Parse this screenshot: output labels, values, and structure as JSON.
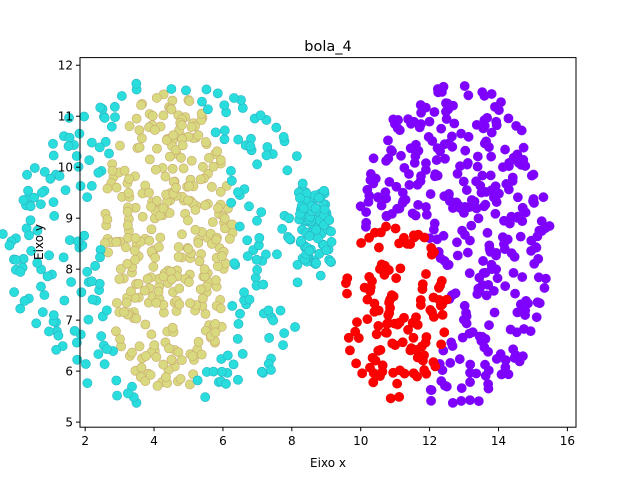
{
  "chart_data": {
    "type": "scatter",
    "title": "bola_4",
    "xlabel": "Eixo x",
    "ylabel": "Eixo y",
    "xlim": [
      1.85,
      16.25
    ],
    "ylim": [
      4.9,
      12.15
    ],
    "xticks": [
      2,
      4,
      6,
      8,
      10,
      12,
      14,
      16
    ],
    "yticks": [
      5,
      6,
      7,
      8,
      9,
      10,
      11,
      12
    ],
    "grid": false,
    "legend": "none",
    "series": [
      {
        "color": "#d9d97f",
        "edge": "#c9aa72",
        "region": {
          "shape": "ellipse",
          "cx": 4.4,
          "cy": 8.5,
          "rx": 1.9,
          "ry": 3.0
        },
        "count": 330,
        "seed": 11
      },
      {
        "color": "#2adddd",
        "edge": "#2ab4c4",
        "region": {
          "shape": "crescent",
          "cx": 4.4,
          "cy": 8.5,
          "rx": 4.8,
          "ry": 3.2,
          "cut_rx": 1.9,
          "cut_ry": 3.0,
          "cluster_cx": 9.0,
          "cluster_cy": 8.9
        },
        "count": 330,
        "seed": 23
      },
      {
        "color": "#8000ff",
        "edge": "#7a10f0",
        "region": {
          "shape": "ellipse",
          "cx": 12.7,
          "cy": 8.5,
          "rx": 2.8,
          "ry": 3.2,
          "cut": {
            "cx": 11.0,
            "cy": 7.2,
            "rx": 1.55,
            "ry": 1.75
          }
        },
        "count": 330,
        "seed": 37
      },
      {
        "color": "#ff0000",
        "edge": "#e80000",
        "region": {
          "shape": "ellipse",
          "cx": 11.0,
          "cy": 7.2,
          "rx": 1.55,
          "ry": 1.75
        },
        "count": 120,
        "seed": 51
      }
    ]
  }
}
